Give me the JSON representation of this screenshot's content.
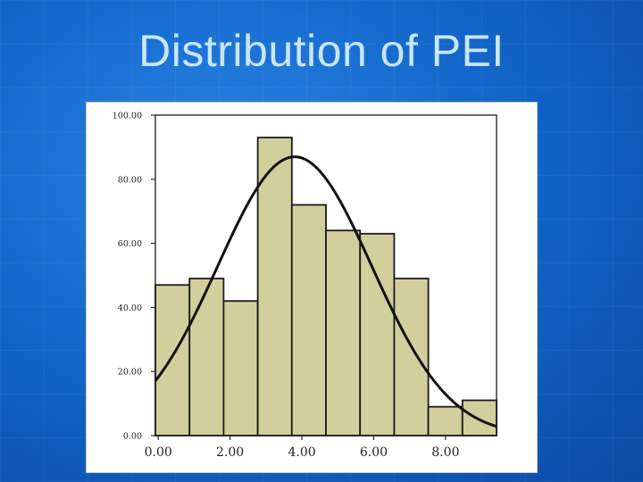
{
  "slide": {
    "title": "Distribution of PEI"
  },
  "colors": {
    "background": "#1565c8",
    "title": "#c9e6f6",
    "bar_fill": "#d3cf9d",
    "bar_stroke": "#1a1a1a",
    "curve": "#111111"
  },
  "chart_data": {
    "type": "bar",
    "subtype": "histogram with normal curve",
    "title": "",
    "xlabel": "",
    "ylabel": "",
    "bin_width": 0.95,
    "bins": [
      {
        "start": -0.08,
        "end": 0.87,
        "value": 47
      },
      {
        "start": 0.87,
        "end": 1.82,
        "value": 49
      },
      {
        "start": 1.82,
        "end": 2.77,
        "value": 42
      },
      {
        "start": 2.77,
        "end": 3.72,
        "value": 93
      },
      {
        "start": 3.72,
        "end": 4.67,
        "value": 72
      },
      {
        "start": 4.67,
        "end": 5.62,
        "value": 64
      },
      {
        "start": 5.62,
        "end": 6.57,
        "value": 63
      },
      {
        "start": 6.57,
        "end": 7.52,
        "value": 49
      },
      {
        "start": 7.52,
        "end": 8.47,
        "value": 9
      },
      {
        "start": 8.47,
        "end": 9.42,
        "value": 11
      }
    ],
    "normal_curve": {
      "mean": 3.8,
      "sd": 2.15,
      "peak": 87
    },
    "xlim": [
      -0.08,
      9.42
    ],
    "ylim": [
      0,
      100
    ],
    "yticks": [
      "100.00",
      "80.00",
      "60.00",
      "40.00",
      "20.00",
      "0.00"
    ],
    "ytick_values": [
      100,
      80,
      60,
      40,
      20,
      0
    ],
    "xticks": [
      "0.00",
      "2.00",
      "4.00",
      "6.00",
      "8.00"
    ],
    "xtick_values": [
      0,
      2,
      4,
      6,
      8
    ],
    "grid": false,
    "legend": "none"
  }
}
